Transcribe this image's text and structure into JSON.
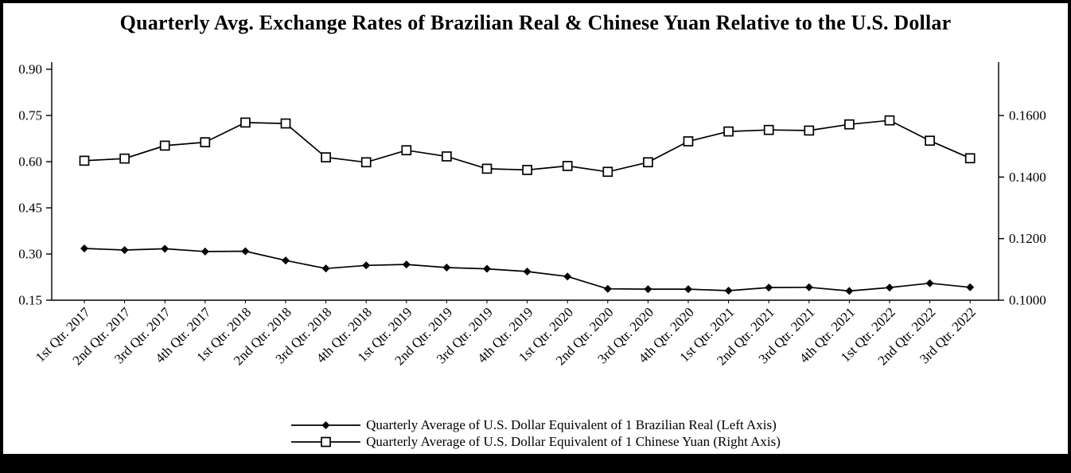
{
  "chart_data": {
    "type": "line",
    "title": "Quarterly Avg. Exchange Rates of Brazilian Real & Chinese Yuan Relative to the U.S. Dollar",
    "grid": false,
    "legend_position": "bottom",
    "background": "#ffffff",
    "line_color": "#000000",
    "categories": [
      "1st Qtr. 2017",
      "2nd Qtr. 2017",
      "3rd Qtr. 2017",
      "4th Qtr. 2017",
      "1st Qtr. 2018",
      "2nd Qtr. 2018",
      "3rd Qtr. 2018",
      "4th Qtr. 2018",
      "1st Qtr. 2019",
      "2nd Qtr. 2019",
      "3rd Qtr. 2019",
      "4th Qtr. 2019",
      "1st Qtr. 2020",
      "2nd Qtr. 2020",
      "3rd Qtr. 2020",
      "4th Qtr. 2020",
      "1st Qtr. 2021",
      "2nd Qtr. 2021",
      "3rd Qtr. 2021",
      "4th Qtr. 2021",
      "1st Qtr. 2022",
      "2nd Qtr. 2022",
      "3rd Qtr. 2022"
    ],
    "series": [
      {
        "name": "Quarterly Average of U.S. Dollar Equivalent of 1 Brazilian Real (Left Axis)",
        "axis": "left",
        "marker": "diamond-filled",
        "color": "#000000",
        "values": [
          0.318,
          0.313,
          0.317,
          0.308,
          0.309,
          0.279,
          0.253,
          0.263,
          0.266,
          0.256,
          0.252,
          0.243,
          0.227,
          0.187,
          0.186,
          0.186,
          0.181,
          0.191,
          0.192,
          0.18,
          0.191,
          0.205,
          0.192
        ]
      },
      {
        "name": "Quarterly Average of U.S. Dollar Equivalent of 1 Chinese Yuan (Right Axis)",
        "axis": "right",
        "marker": "square-open",
        "color": "#000000",
        "values": [
          0.1453,
          0.146,
          0.1502,
          0.1513,
          0.1577,
          0.1574,
          0.1464,
          0.1448,
          0.1487,
          0.1467,
          0.1427,
          0.1423,
          0.1436,
          0.1417,
          0.1448,
          0.1516,
          0.1548,
          0.1553,
          0.1551,
          0.1571,
          0.1584,
          0.1518,
          0.1461
        ]
      }
    ],
    "left_axis": {
      "min": 0.15,
      "max": 0.9,
      "ticks": [
        0.15,
        0.3,
        0.45,
        0.6,
        0.75,
        0.9
      ],
      "tick_labels": [
        "0.15",
        "0.30",
        "0.45",
        "0.60",
        "0.75",
        "0.90"
      ]
    },
    "right_axis": {
      "min": 0.1,
      "max": 0.175,
      "ticks": [
        0.1,
        0.12,
        0.14,
        0.16
      ],
      "tick_labels": [
        "0.1000",
        "0.1200",
        "0.1400",
        "0.1600"
      ]
    }
  }
}
